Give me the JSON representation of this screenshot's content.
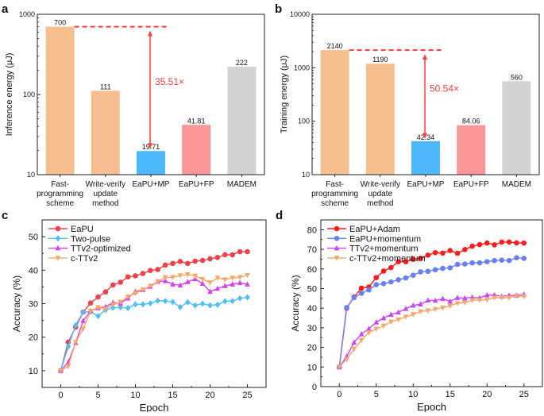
{
  "chart_data": [
    {
      "panel": "a",
      "type": "bar",
      "ylabel": "Inference energy (μJ)",
      "yscale": "log",
      "ylim": [
        10,
        1000
      ],
      "yticks": [
        "10",
        "100",
        "1000"
      ],
      "categories": [
        [
          "Fast-",
          "programming",
          "scheme"
        ],
        [
          "Write-verify",
          "update",
          "method"
        ],
        [
          "EaPU+MP"
        ],
        [
          "EaPU+FP"
        ],
        [
          "MADEM"
        ]
      ],
      "values": [
        700,
        111,
        19.71,
        41.81,
        222
      ],
      "value_labels": [
        "700",
        "111",
        "19.71",
        "41.81",
        "222"
      ],
      "colors": [
        "#f6bf90",
        "#f6bf90",
        "#4db9fb",
        "#f99697",
        "#d3d3d3"
      ],
      "annotation": {
        "text": "35.51×",
        "color": "#ff3b3b"
      }
    },
    {
      "panel": "b",
      "type": "bar",
      "ylabel": "Training energy (μJ)",
      "yscale": "log",
      "ylim": [
        10,
        10000
      ],
      "yticks": [
        "10",
        "100",
        "1000",
        "10000"
      ],
      "categories": [
        [
          "Fast-",
          "programming",
          "scheme"
        ],
        [
          "Write-verify",
          "update",
          "method"
        ],
        [
          "EaPU+MP"
        ],
        [
          "EaPU+FP"
        ],
        [
          "MADEM"
        ]
      ],
      "values": [
        2140,
        1190,
        42.34,
        84.06,
        560
      ],
      "value_labels": [
        "2140",
        "1190",
        "42.34",
        "84.06",
        "560"
      ],
      "colors": [
        "#f6bf90",
        "#f6bf90",
        "#4db9fb",
        "#f99697",
        "#d3d3d3"
      ],
      "annotation": {
        "text": "50.54×",
        "color": "#ff3b3b"
      }
    },
    {
      "panel": "c",
      "type": "line",
      "xlabel": "Epoch",
      "ylabel": "Accuracy (%)",
      "xlim": [
        -2.5,
        27.5
      ],
      "ylim": [
        5,
        55
      ],
      "xticks": [
        "0",
        "5",
        "10",
        "15",
        "20",
        "25"
      ],
      "yticks": [
        "10",
        "20",
        "30",
        "40",
        "50"
      ],
      "legend": "top-left",
      "x": [
        0,
        1,
        2,
        3,
        4,
        5,
        6,
        7,
        8,
        9,
        10,
        11,
        12,
        13,
        14,
        15,
        16,
        17,
        18,
        19,
        20,
        21,
        22,
        23,
        24,
        25
      ],
      "series": [
        {
          "name": "EaPU",
          "color": "#f0404a",
          "marker": "circle",
          "values": [
            10,
            18.5,
            23,
            27.5,
            30.2,
            32,
            33.5,
            35.6,
            36.4,
            38,
            38.3,
            39,
            39.9,
            40.2,
            41.5,
            42,
            42.6,
            42,
            42.7,
            42.9,
            43.4,
            43.8,
            44.6,
            44.6,
            45.5,
            45.5
          ]
        },
        {
          "name": "Two-pulse",
          "color": "#4fc0f5",
          "marker": "diamond",
          "values": [
            10,
            17.2,
            23.6,
            27.5,
            27.6,
            26.3,
            28.1,
            28.8,
            28.9,
            28.7,
            29.8,
            29.8,
            30.1,
            30.9,
            30.8,
            30.5,
            29,
            30.4,
            29.5,
            30,
            29.5,
            29.7,
            30.7,
            30.8,
            31.6,
            31.9
          ]
        },
        {
          "name": "TTv2-optimized",
          "color": "#d740f0",
          "marker": "triangle-up",
          "values": [
            10,
            12.5,
            18.3,
            24.9,
            27.8,
            28.7,
            29.1,
            30.3,
            30.1,
            31.6,
            33.6,
            34.1,
            35.1,
            36.6,
            36.8,
            35.8,
            35.5,
            36.5,
            37.4,
            36,
            33.6,
            34.5,
            35.3,
            35.8,
            36.2,
            35.8
          ]
        },
        {
          "name": "c-TTv2",
          "color": "#f7a868",
          "marker": "triangle-down",
          "values": [
            10,
            11.3,
            18.5,
            22.5,
            27.8,
            28.9,
            28.4,
            29.7,
            30.5,
            32.1,
            33.1,
            34.1,
            35.3,
            36.6,
            37.8,
            37.9,
            38.4,
            38.7,
            38.3,
            37.3,
            36.3,
            37.7,
            37.2,
            37.7,
            37.9,
            38.5
          ]
        }
      ]
    },
    {
      "panel": "d",
      "type": "line",
      "xlabel": "Epoch",
      "ylabel": "Accuracy (%)",
      "xlim": [
        -2.5,
        27.5
      ],
      "ylim": [
        0,
        85
      ],
      "xticks": [
        "0",
        "5",
        "10",
        "15",
        "20",
        "25"
      ],
      "yticks": [
        "0",
        "10",
        "20",
        "30",
        "40",
        "50",
        "60",
        "70",
        "80"
      ],
      "legend": "top-left",
      "x": [
        0,
        1,
        2,
        3,
        4,
        5,
        6,
        7,
        8,
        9,
        10,
        11,
        12,
        13,
        14,
        15,
        16,
        17,
        18,
        19,
        20,
        21,
        22,
        23,
        24,
        25
      ],
      "series": [
        {
          "name": "EaPU+Adam",
          "color": "#ff1a1a",
          "marker": "circle",
          "values": [
            10,
            40,
            45.7,
            50.2,
            50.8,
            55.6,
            58.9,
            60.7,
            63.7,
            63.7,
            64.9,
            65.4,
            67,
            68.3,
            68.1,
            69.4,
            68,
            69.9,
            71.6,
            72.4,
            73.2,
            72.3,
            73.7,
            73.7,
            73.3,
            73.2
          ]
        },
        {
          "name": "EaPU+momentum",
          "color": "#6a80f2",
          "marker": "circle",
          "values": [
            10,
            40.3,
            45.4,
            47.6,
            49.3,
            52,
            52.5,
            53.4,
            54.5,
            55.4,
            56.8,
            58.5,
            58.8,
            59.6,
            60.3,
            60.6,
            62.3,
            62.5,
            63.1,
            63.1,
            63.7,
            64.3,
            64.5,
            64.3,
            65.7,
            65.4
          ]
        },
        {
          "name": "TTv2+momentum",
          "color": "#cc44ff",
          "marker": "triangle-up",
          "values": [
            10,
            15.4,
            22.6,
            26.8,
            29.5,
            32.8,
            35,
            36.7,
            37.9,
            39.7,
            41.4,
            42,
            44,
            43.9,
            44.8,
            43.5,
            45.3,
            45.1,
            45.5,
            45.2,
            46.7,
            46.7,
            46,
            46.5,
            46.5,
            47
          ]
        },
        {
          "name": "c-TTv2+momentum",
          "color": "#f5a86e",
          "marker": "triangle-down",
          "values": [
            10,
            14,
            19.2,
            23.6,
            27.6,
            29.4,
            31,
            33,
            34.2,
            35.6,
            36.8,
            38.3,
            38.8,
            39.5,
            40.2,
            41.2,
            42.5,
            42.8,
            44.1,
            44.1,
            44.3,
            45.3,
            45.4,
            45.3,
            46.2,
            46
          ]
        }
      ]
    }
  ]
}
